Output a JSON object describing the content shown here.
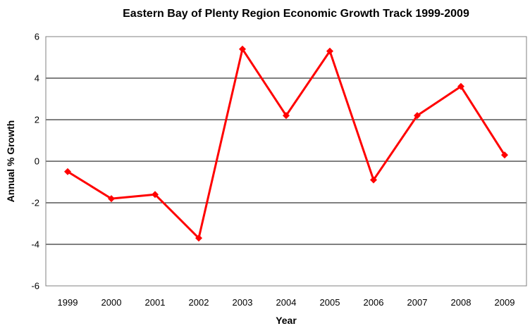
{
  "chart_data": {
    "type": "line",
    "title": "Eastern Bay of Plenty Region Economic Growth Track 1999-2009",
    "xlabel": "Year",
    "ylabel": "Annual % Growth",
    "categories": [
      "1999",
      "2000",
      "2001",
      "2002",
      "2003",
      "2004",
      "2005",
      "2006",
      "2007",
      "2008",
      "2009"
    ],
    "series": [
      {
        "values": [
          -0.5,
          -1.8,
          -1.6,
          -3.7,
          5.4,
          2.2,
          5.3,
          -0.9,
          2.2,
          3.6,
          0.3
        ]
      }
    ],
    "ylim": [
      -6,
      6
    ],
    "yticks": [
      "-6",
      "-4",
      "-2",
      "0",
      "2",
      "4",
      "6"
    ],
    "grid": true,
    "legend": "none",
    "colors": {
      "series": "#ff0000",
      "grid": "#000000"
    }
  }
}
